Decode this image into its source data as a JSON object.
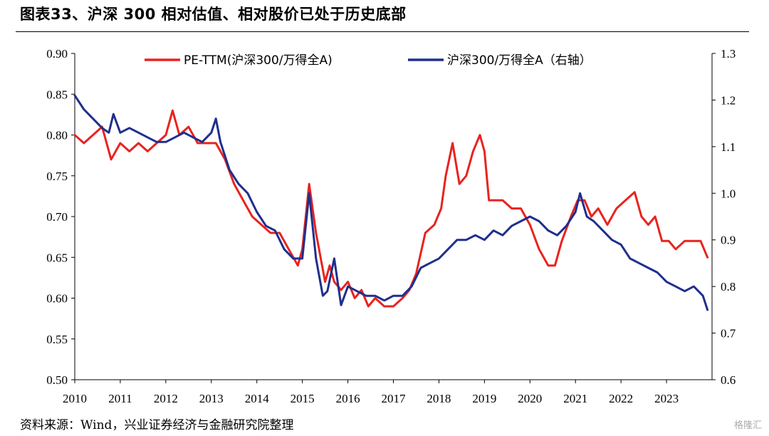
{
  "title": "图表33、沪深 300 相对估值、相对股价已处于历史底部",
  "source": "资料来源：Wind，兴业证券经济与金融研究院整理",
  "watermark": "格隆汇",
  "colors": {
    "pe_series": "#e8231f",
    "price_series": "#1f2f8c"
  },
  "chart_data": {
    "type": "line",
    "x_tick_labels": [
      "2010",
      "2011",
      "2012",
      "2013",
      "2014",
      "2015",
      "2016",
      "2017",
      "2018",
      "2019",
      "2020",
      "2021",
      "2022",
      "2023"
    ],
    "left_axis": {
      "min": 0.5,
      "max": 0.9,
      "ticks": [
        "0.50",
        "0.55",
        "0.60",
        "0.65",
        "0.70",
        "0.75",
        "0.80",
        "0.85",
        "0.90"
      ]
    },
    "right_axis": {
      "min": 0.6,
      "max": 1.3,
      "ticks": [
        "0.6",
        "0.7",
        "0.8",
        "0.9",
        "1.0",
        "1.1",
        "1.2",
        "1.3"
      ]
    },
    "legend_placement": "top",
    "grid": false,
    "series": [
      {
        "name": "PE-TTM(沪深300/万得全A)",
        "axis": "left",
        "x": [
          2010.0,
          2010.2,
          2010.4,
          2010.6,
          2010.8,
          2011.0,
          2011.2,
          2011.4,
          2011.6,
          2011.8,
          2012.0,
          2012.15,
          2012.3,
          2012.5,
          2012.7,
          2012.9,
          2013.1,
          2013.3,
          2013.5,
          2013.7,
          2013.9,
          2014.1,
          2014.3,
          2014.5,
          2014.7,
          2014.9,
          2015.0,
          2015.15,
          2015.3,
          2015.5,
          2015.6,
          2015.7,
          2015.85,
          2016.0,
          2016.15,
          2016.3,
          2016.45,
          2016.6,
          2016.8,
          2017.0,
          2017.2,
          2017.35,
          2017.5,
          2017.7,
          2017.9,
          2018.05,
          2018.15,
          2018.3,
          2018.45,
          2018.6,
          2018.75,
          2018.9,
          2019.0,
          2019.1,
          2019.25,
          2019.4,
          2019.6,
          2019.8,
          2020.0,
          2020.2,
          2020.4,
          2020.55,
          2020.7,
          2020.9,
          2021.05,
          2021.2,
          2021.35,
          2021.5,
          2021.7,
          2021.9,
          2022.1,
          2022.3,
          2022.45,
          2022.6,
          2022.75,
          2022.9,
          2023.05,
          2023.2,
          2023.4,
          2023.6,
          2023.75,
          2023.9
        ],
        "values": [
          0.8,
          0.79,
          0.8,
          0.81,
          0.77,
          0.79,
          0.78,
          0.79,
          0.78,
          0.79,
          0.8,
          0.83,
          0.8,
          0.81,
          0.79,
          0.79,
          0.79,
          0.77,
          0.74,
          0.72,
          0.7,
          0.69,
          0.68,
          0.68,
          0.66,
          0.64,
          0.66,
          0.74,
          0.68,
          0.62,
          0.64,
          0.62,
          0.61,
          0.62,
          0.6,
          0.61,
          0.59,
          0.6,
          0.59,
          0.59,
          0.6,
          0.61,
          0.63,
          0.68,
          0.69,
          0.71,
          0.75,
          0.79,
          0.74,
          0.75,
          0.78,
          0.8,
          0.78,
          0.72,
          0.72,
          0.72,
          0.71,
          0.71,
          0.69,
          0.66,
          0.64,
          0.64,
          0.67,
          0.7,
          0.72,
          0.72,
          0.7,
          0.71,
          0.69,
          0.71,
          0.72,
          0.73,
          0.7,
          0.69,
          0.7,
          0.67,
          0.67,
          0.66,
          0.67,
          0.67,
          0.67,
          0.65
        ]
      },
      {
        "name": "沪深300/万得全A（右轴）",
        "axis": "right",
        "x": [
          2010.0,
          2010.2,
          2010.4,
          2010.6,
          2010.75,
          2010.85,
          2011.0,
          2011.2,
          2011.4,
          2011.6,
          2011.8,
          2012.0,
          2012.2,
          2012.4,
          2012.6,
          2012.8,
          2013.0,
          2013.1,
          2013.2,
          2013.4,
          2013.6,
          2013.8,
          2014.0,
          2014.2,
          2014.4,
          2014.6,
          2014.8,
          2015.0,
          2015.15,
          2015.3,
          2015.45,
          2015.55,
          2015.7,
          2015.85,
          2016.0,
          2016.2,
          2016.4,
          2016.6,
          2016.8,
          2017.0,
          2017.2,
          2017.4,
          2017.6,
          2017.8,
          2018.0,
          2018.2,
          2018.4,
          2018.6,
          2018.8,
          2019.0,
          2019.2,
          2019.4,
          2019.6,
          2019.8,
          2020.0,
          2020.2,
          2020.4,
          2020.6,
          2020.8,
          2021.0,
          2021.1,
          2021.25,
          2021.4,
          2021.6,
          2021.8,
          2022.0,
          2022.2,
          2022.4,
          2022.6,
          2022.8,
          2023.0,
          2023.2,
          2023.4,
          2023.6,
          2023.8,
          2023.9
        ],
        "values": [
          1.21,
          1.18,
          1.16,
          1.14,
          1.13,
          1.17,
          1.13,
          1.14,
          1.13,
          1.12,
          1.11,
          1.11,
          1.12,
          1.13,
          1.12,
          1.11,
          1.13,
          1.16,
          1.11,
          1.05,
          1.02,
          1.0,
          0.96,
          0.93,
          0.92,
          0.88,
          0.86,
          0.86,
          1.0,
          0.86,
          0.78,
          0.79,
          0.86,
          0.76,
          0.8,
          0.79,
          0.78,
          0.78,
          0.77,
          0.78,
          0.78,
          0.8,
          0.84,
          0.85,
          0.86,
          0.88,
          0.9,
          0.9,
          0.91,
          0.9,
          0.92,
          0.91,
          0.93,
          0.94,
          0.95,
          0.94,
          0.92,
          0.91,
          0.93,
          0.96,
          1.0,
          0.95,
          0.94,
          0.92,
          0.9,
          0.89,
          0.86,
          0.85,
          0.84,
          0.83,
          0.81,
          0.8,
          0.79,
          0.8,
          0.78,
          0.75
        ]
      }
    ]
  }
}
